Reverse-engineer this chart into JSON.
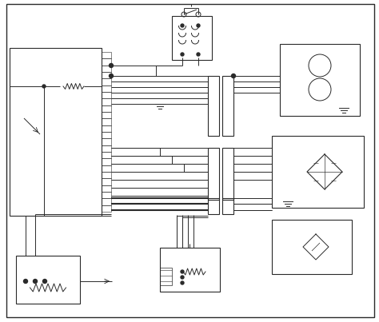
{
  "bg_color": "#ffffff",
  "line_color": "#2a2a2a",
  "fig_width": 4.74,
  "fig_height": 4.03,
  "dpi": 100
}
